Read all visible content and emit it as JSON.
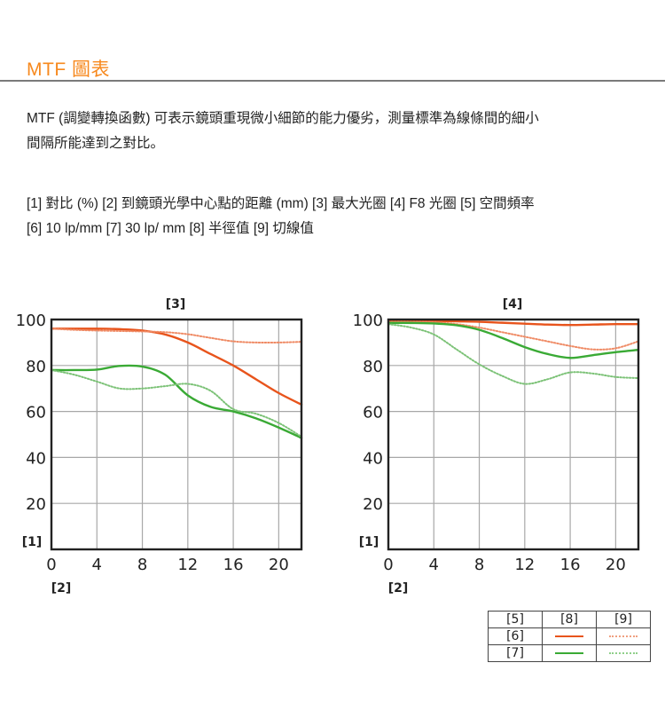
{
  "header": {
    "title": "MTF 圖表"
  },
  "description": {
    "line1": "MTF (調變轉換函數) 可表示鏡頭重現微小細節的能力優劣，測量標準為線條間的細小",
    "line2": "間隔所能達到之對比。"
  },
  "legend_text": {
    "line1": "[1] 對比 (%) [2] 到鏡頭光學中心點的距離 (mm) [3] 最大光圈 [4] F8 光圈 [5] 空間頻率",
    "line2": "[6] 10 lp/mm [7] 30 lp/ mm [8] 半徑值 [9] 切線值"
  },
  "labels": {
    "y_axis": "[1]",
    "x_axis": "[2]",
    "chart_left": "[3]",
    "chart_right": "[4]"
  },
  "legend_table": {
    "header": [
      "[5]",
      "[8]",
      "[9]"
    ],
    "rows": [
      {
        "label": "[6]",
        "sagittal_color": "#e8541c",
        "meridional_color": "#f0a080"
      },
      {
        "label": "[7]",
        "sagittal_color": "#3aaa35",
        "meridional_color": "#8fcf8a"
      }
    ]
  },
  "colors": {
    "title": "#f7891e",
    "ten_lp": "#e8541c",
    "ten_lp_dotted": "#ef8a64",
    "thirty_lp": "#3aaa35",
    "thirty_lp_dotted": "#7cc277",
    "grid": "#a8a8a8",
    "frame": "#222222"
  },
  "chart_data": [
    {
      "type": "line",
      "title": "[3]",
      "subtitle": "最大光圈",
      "xlabel": "[2] 到鏡頭光學中心點的距離 (mm)",
      "ylabel": "[1] 對比 (%)",
      "xlim": [
        0,
        22
      ],
      "ylim": [
        0,
        100
      ],
      "xticks": [
        0,
        4,
        8,
        12,
        16,
        20
      ],
      "yticks": [
        20,
        40,
        60,
        80,
        100
      ],
      "grid": true,
      "x": [
        0,
        2,
        4,
        6,
        8,
        10,
        12,
        14,
        16,
        18,
        20,
        22
      ],
      "series": [
        {
          "name": "10 lp/mm 半徑值",
          "style": "solid",
          "color": "#e8541c",
          "values": [
            96,
            96,
            96,
            95.8,
            95.2,
            93.5,
            90,
            85,
            80,
            74,
            68,
            63
          ]
        },
        {
          "name": "10 lp/mm 切線值",
          "style": "dotted",
          "color": "#ef8a64",
          "values": [
            96,
            95.5,
            95.2,
            95,
            94.8,
            94.5,
            93.6,
            92,
            90.5,
            90,
            90,
            90.3
          ]
        },
        {
          "name": "30 lp/mm 半徑值",
          "style": "solid",
          "color": "#3aaa35",
          "values": [
            78,
            78,
            78.2,
            79.8,
            79.5,
            76,
            67,
            62,
            60,
            57,
            53,
            48.5
          ]
        },
        {
          "name": "30 lp/mm 切線值",
          "style": "dotted",
          "color": "#7cc277",
          "values": [
            78,
            76,
            73,
            70,
            70,
            71,
            72,
            69,
            61,
            59,
            55,
            49
          ]
        }
      ]
    },
    {
      "type": "line",
      "title": "[4]",
      "subtitle": "F8 光圈",
      "xlabel": "[2] 到鏡頭光學中心點的距離 (mm)",
      "ylabel": "[1] 對比 (%)",
      "xlim": [
        0,
        22
      ],
      "ylim": [
        0,
        100
      ],
      "xticks": [
        0,
        4,
        8,
        12,
        16,
        20
      ],
      "yticks": [
        20,
        40,
        60,
        80,
        100
      ],
      "grid": true,
      "x": [
        0,
        2,
        4,
        6,
        8,
        10,
        12,
        14,
        16,
        18,
        20,
        22
      ],
      "series": [
        {
          "name": "10 lp/mm 半徑值",
          "style": "solid",
          "color": "#e8541c",
          "values": [
            99.5,
            99.5,
            99.4,
            99.2,
            99,
            98.6,
            98.2,
            97.8,
            97.6,
            97.8,
            98,
            98
          ]
        },
        {
          "name": "10 lp/mm 切線值",
          "style": "dotted",
          "color": "#ef8a64",
          "values": [
            99,
            99,
            98.8,
            98,
            96.5,
            94.5,
            92.5,
            90.5,
            88.5,
            87,
            87.5,
            90.5
          ]
        },
        {
          "name": "30 lp/mm 半徑值",
          "style": "solid",
          "color": "#3aaa35",
          "values": [
            98.5,
            98.5,
            98.3,
            97.5,
            95.5,
            92,
            88,
            85,
            83.3,
            84.5,
            85.8,
            86.8
          ]
        },
        {
          "name": "30 lp/mm 切線值",
          "style": "dotted",
          "color": "#7cc277",
          "values": [
            98,
            96.5,
            93.5,
            87,
            80.5,
            75.5,
            72,
            74,
            77,
            76.5,
            75,
            74.5
          ]
        }
      ]
    }
  ]
}
